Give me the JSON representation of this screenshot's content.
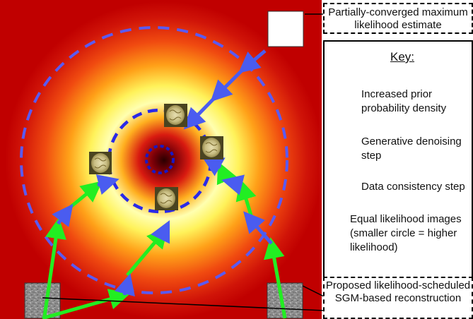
{
  "labels": {
    "top_right": "Partially-converged maximum likelihood estimate",
    "bottom_right": "Proposed likelihood-scheduled SGM-based reconstruction"
  },
  "key": {
    "title": "Key:",
    "prior": "Increased prior probability density",
    "generative": "Generative denoising step",
    "data_consistency": "Data consistency step",
    "equal_likelihood": "Equal likelihood images (smaller circle = higher likelihood)"
  },
  "colors": {
    "background": "#c00000",
    "green_arrow": "#22ee22",
    "blue_arrow": "#4a5cf0",
    "dashed_circle": "#5a5af2",
    "key_circle": "#0a0aa8"
  }
}
